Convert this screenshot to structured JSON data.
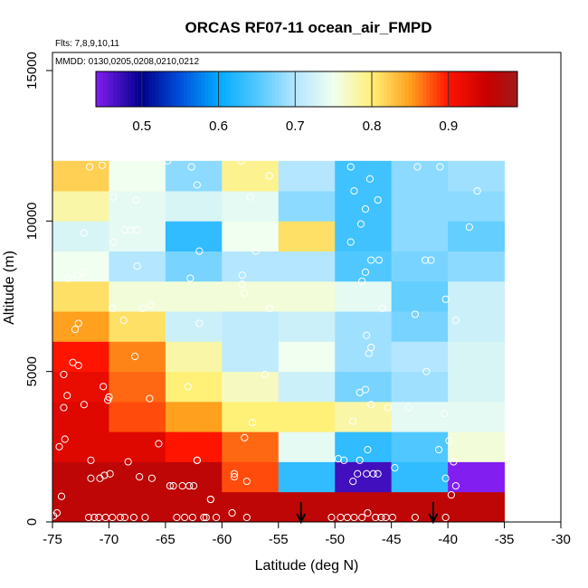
{
  "chart_data": {
    "type": "heatmap",
    "title": "ORCAS RF07-11 ocean_air_FMPD",
    "xlabel": "Latitude (deg N)",
    "ylabel": "Altitude (m)",
    "annotation_flights": "Flts: 7,8,9,10,11",
    "annotation_dates": "MMDD: 0130,0205,0208,0210,0212",
    "xlim": [
      -75,
      -30
    ],
    "ylim": [
      0,
      16000
    ],
    "x_ticks": [
      -75,
      -70,
      -65,
      -60,
      -55,
      -50,
      -45,
      -40,
      -35,
      -30
    ],
    "x_tick_labels": [
      "-75",
      "-70",
      "-65",
      "-60",
      "-55",
      "-50",
      "-45",
      "-40",
      "-35",
      "-30"
    ],
    "y_ticks": [
      0,
      5000,
      10000,
      15000
    ],
    "y_tick_labels": [
      "0",
      "5000",
      "10000",
      "15000"
    ],
    "colorbar": {
      "range": [
        0.44,
        0.99
      ],
      "ticks": [
        0.5,
        0.6,
        0.7,
        0.8,
        0.9
      ],
      "tick_labels": [
        "0.5",
        "0.6",
        "0.7",
        "0.8",
        "0.9"
      ]
    },
    "x_bin_edges": [
      -75,
      -70,
      -65,
      -60,
      -55,
      -50,
      -45,
      -40,
      -35
    ],
    "y_bin_edges": [
      0,
      1000,
      2000,
      3000,
      4000,
      5000,
      6000,
      7000,
      8000,
      9000,
      10000,
      11000,
      12000
    ],
    "cells": [
      [
        0.96,
        0.96,
        0.96,
        0.96,
        0.96,
        0.96,
        0.96,
        0.96
      ],
      [
        0.96,
        0.96,
        0.96,
        0.88,
        0.63,
        0.47,
        0.63,
        0.44
      ],
      [
        0.93,
        0.93,
        0.9,
        0.87,
        0.74,
        0.63,
        0.65,
        0.76
      ],
      [
        0.93,
        0.88,
        0.85,
        0.8,
        0.8,
        0.78,
        0.74,
        0.74
      ],
      [
        0.92,
        0.87,
        0.8,
        0.77,
        0.72,
        0.67,
        0.69,
        0.73
      ],
      [
        0.9,
        0.86,
        0.78,
        0.71,
        0.75,
        0.69,
        0.7,
        0.73
      ],
      [
        0.85,
        0.81,
        0.72,
        0.71,
        0.72,
        0.69,
        0.67,
        0.72
      ],
      [
        0.81,
        0.76,
        0.76,
        0.76,
        0.76,
        0.74,
        0.66,
        0.72
      ],
      [
        0.75,
        0.7,
        0.67,
        0.7,
        0.7,
        0.65,
        0.67,
        0.68
      ],
      [
        0.73,
        0.74,
        0.63,
        0.75,
        0.81,
        0.64,
        0.68,
        0.66
      ],
      [
        0.78,
        0.74,
        0.73,
        0.74,
        0.68,
        0.64,
        0.68,
        0.68
      ],
      [
        0.82,
        0.75,
        0.68,
        0.79,
        0.7,
        0.64,
        0.68,
        0.69
      ]
    ],
    "points": [
      [
        -74.9,
        200
      ],
      [
        -74.6,
        300
      ],
      [
        -74.2,
        850
      ],
      [
        -74.4,
        2500
      ],
      [
        -73.9,
        2750
      ],
      [
        -74.0,
        3800
      ],
      [
        -73.7,
        4200
      ],
      [
        -74.0,
        4900
      ],
      [
        -73.2,
        5300
      ],
      [
        -72.7,
        5200
      ],
      [
        -73.0,
        6400
      ],
      [
        -72.7,
        6600
      ],
      [
        -73.6,
        8100
      ],
      [
        -72.8,
        8200
      ],
      [
        -72.3,
        8300
      ],
      [
        -72.2,
        9600
      ],
      [
        -71.7,
        11800
      ],
      [
        -70.6,
        11850
      ],
      [
        -71.6,
        2050
      ],
      [
        -70.8,
        1450
      ],
      [
        -71.6,
        1450
      ],
      [
        -70.4,
        1550
      ],
      [
        -69.9,
        1600
      ],
      [
        -71.8,
        150
      ],
      [
        -71.3,
        150
      ],
      [
        -70.9,
        150
      ],
      [
        -70.3,
        150
      ],
      [
        -69.7,
        150
      ],
      [
        -72.2,
        3900
      ],
      [
        -70.5,
        4500
      ],
      [
        -70.0,
        4150
      ],
      [
        -70.1,
        4050
      ],
      [
        -68.3,
        2000
      ],
      [
        -67.3,
        1500
      ],
      [
        -66.2,
        1450
      ],
      [
        -69.0,
        150
      ],
      [
        -68.6,
        150
      ],
      [
        -67.8,
        150
      ],
      [
        -66.8,
        150
      ],
      [
        -66.4,
        4100
      ],
      [
        -65.6,
        2600
      ],
      [
        -68.7,
        6700
      ],
      [
        -67.7,
        5500
      ],
      [
        -69.7,
        7100
      ],
      [
        -67.0,
        7100
      ],
      [
        -66.3,
        7200
      ],
      [
        -69.6,
        9300
      ],
      [
        -68.6,
        9700
      ],
      [
        -68.1,
        9700
      ],
      [
        -67.5,
        9700
      ],
      [
        -67.5,
        8500
      ],
      [
        -69.6,
        10800
      ],
      [
        -67.6,
        10700
      ],
      [
        -64.6,
        1200
      ],
      [
        -64.3,
        1200
      ],
      [
        -63.5,
        1200
      ],
      [
        -62.9,
        1200
      ],
      [
        -62.5,
        1200
      ],
      [
        -64.0,
        150
      ],
      [
        -63.3,
        150
      ],
      [
        -62.6,
        150
      ],
      [
        -61.6,
        150
      ],
      [
        -61.4,
        150
      ],
      [
        -62.2,
        2050
      ],
      [
        -62.2,
        2050
      ],
      [
        -63.0,
        4500
      ],
      [
        -61.0,
        750
      ],
      [
        -62.8,
        8100
      ],
      [
        -62.0,
        9000
      ],
      [
        -62.0,
        6600
      ],
      [
        -62.7,
        11800
      ],
      [
        -62.2,
        11200
      ],
      [
        -64.8,
        12000
      ],
      [
        -61.0,
        750
      ],
      [
        -60.5,
        150
      ],
      [
        -59.1,
        300
      ],
      [
        -58.9,
        1600
      ],
      [
        -58.9,
        1500
      ],
      [
        -58.0,
        2800
      ],
      [
        -57.8,
        1350
      ],
      [
        -57.8,
        150
      ],
      [
        -58.2,
        8200
      ],
      [
        -58.2,
        7900
      ],
      [
        -57.3,
        3300
      ],
      [
        -56.2,
        4900
      ],
      [
        -55.8,
        7100
      ],
      [
        -57.0,
        9000
      ],
      [
        -58.3,
        12000
      ],
      [
        -57.5,
        10800
      ],
      [
        -55.8,
        11500
      ],
      [
        -58.0,
        7600
      ],
      [
        -50.3,
        150
      ],
      [
        -49.5,
        150
      ],
      [
        -48.9,
        150
      ],
      [
        -48.3,
        150
      ],
      [
        -47.6,
        150
      ],
      [
        -47.1,
        300
      ],
      [
        -46.4,
        150
      ],
      [
        -45.9,
        150
      ],
      [
        -45.5,
        150
      ],
      [
        -44.9,
        150
      ],
      [
        -42.9,
        150
      ],
      [
        -40.2,
        150
      ],
      [
        -48.4,
        1350
      ],
      [
        -48.0,
        1600
      ],
      [
        -47.2,
        1600
      ],
      [
        -46.6,
        1600
      ],
      [
        -46.2,
        1600
      ],
      [
        -49.7,
        2100
      ],
      [
        -49.2,
        2050
      ],
      [
        -47.8,
        2050
      ],
      [
        -47.1,
        2400
      ],
      [
        -44.7,
        1800
      ],
      [
        -48.4,
        3350
      ],
      [
        -47.8,
        4300
      ],
      [
        -47.3,
        4400
      ],
      [
        -46.8,
        3900
      ],
      [
        -45.3,
        3800
      ],
      [
        -47.0,
        5600
      ],
      [
        -46.8,
        5800
      ],
      [
        -47.2,
        6200
      ],
      [
        -45.8,
        7100
      ],
      [
        -46.1,
        8700
      ],
      [
        -46.8,
        8700
      ],
      [
        -47.3,
        8300
      ],
      [
        -47.6,
        8000
      ],
      [
        -48.6,
        9300
      ],
      [
        -47.7,
        9900
      ],
      [
        -47.3,
        10400
      ],
      [
        -46.2,
        10700
      ],
      [
        -48.3,
        11000
      ],
      [
        -46.9,
        11400
      ],
      [
        -48.6,
        11800
      ],
      [
        -42.9,
        6900
      ],
      [
        -42.0,
        8700
      ],
      [
        -41.5,
        8700
      ],
      [
        -41.9,
        5000
      ],
      [
        -40.2,
        7400
      ],
      [
        -39.3,
        6700
      ],
      [
        -40.3,
        3600
      ],
      [
        -43.5,
        3800
      ],
      [
        -40.8,
        2400
      ],
      [
        -39.9,
        2700
      ],
      [
        -39.5,
        2000
      ],
      [
        -40.2,
        1450
      ],
      [
        -39.3,
        1200
      ],
      [
        -38.1,
        9800
      ],
      [
        -37.4,
        11000
      ],
      [
        -40.7,
        11800
      ],
      [
        -42.7,
        11800
      ],
      [
        -39.7,
        900
      ]
    ],
    "arrows_at_latitude": [
      -53,
      -41.3
    ]
  }
}
